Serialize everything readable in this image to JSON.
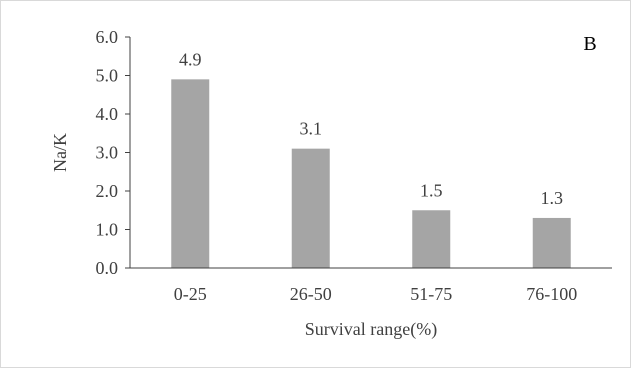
{
  "chart_data": {
    "type": "bar",
    "panel_label": "B",
    "categories": [
      "0-25",
      "26-50",
      "51-75",
      "76-100"
    ],
    "values": [
      4.9,
      3.1,
      1.5,
      1.3
    ],
    "data_labels": [
      "4.9",
      "3.1",
      "1.5",
      "1.3"
    ],
    "xlabel": "Survival range(%)",
    "ylabel": "Na/K",
    "ylim": [
      0,
      6
    ],
    "yticks": [
      0,
      1,
      2,
      3,
      4,
      5,
      6
    ],
    "ytick_labels": [
      "0.0",
      "1.0",
      "2.0",
      "3.0",
      "4.0",
      "5.0",
      "6.0"
    ],
    "grid": false,
    "bar_color": "#a5a5a5",
    "axis_color": "#404040"
  }
}
